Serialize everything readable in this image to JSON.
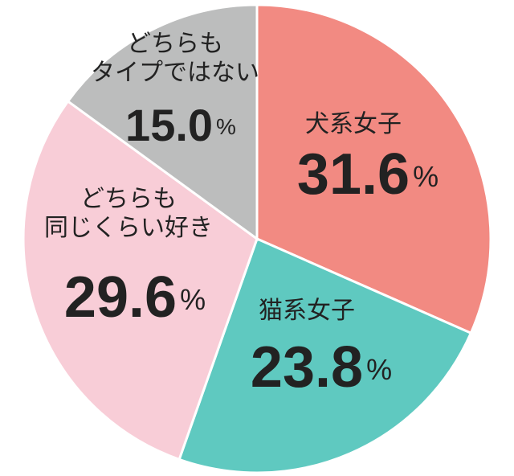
{
  "chart_data": {
    "type": "pie",
    "categories": [
      "犬系女子",
      "猫系女子",
      "どちらも\n同じくらい好き",
      "どちらも\nタイプではない"
    ],
    "values": [
      31.6,
      23.8,
      29.6,
      15.0
    ],
    "value_labels": [
      "31.6%",
      "23.8%",
      "29.6%",
      "15.0%"
    ],
    "colors": [
      "#f28a82",
      "#5fc9c0",
      "#f8cdd7",
      "#bcbdbd"
    ]
  }
}
